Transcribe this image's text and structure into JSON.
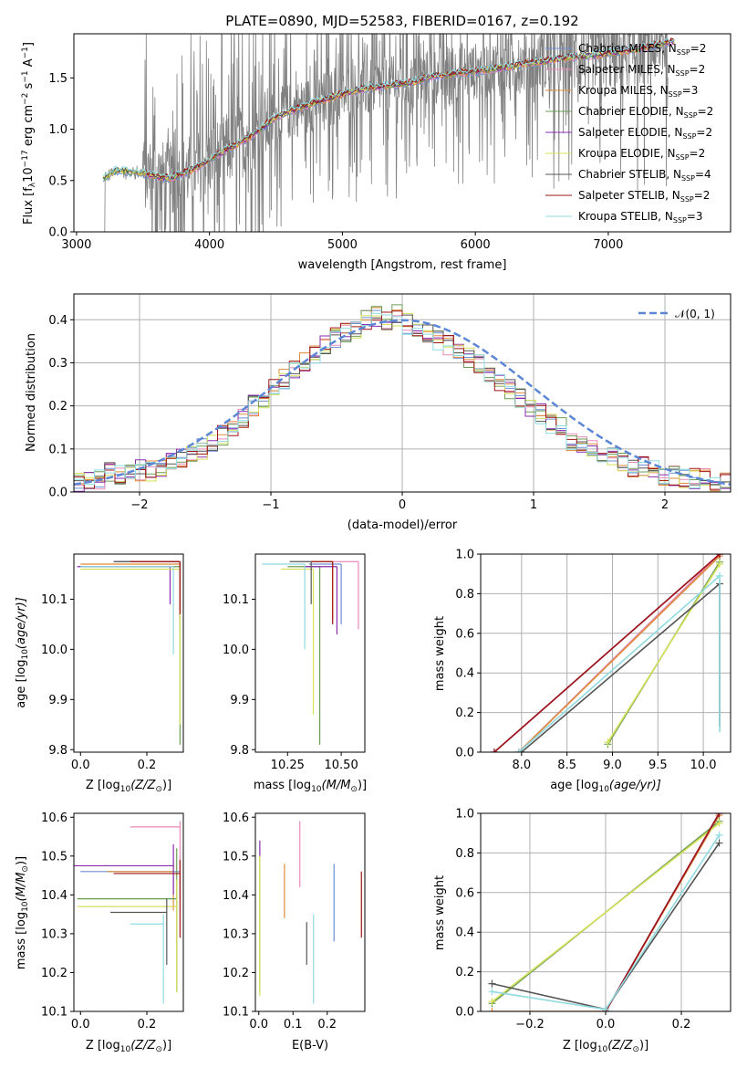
{
  "colors": {
    "Chabrier MILES": "#6f8fd6",
    "Salpeter MILES": "#e88ab8",
    "Kroupa MILES": "#e08b3a",
    "Chabrier ELODIE": "#6b9e55",
    "Salpeter ELODIE": "#8a2bb0",
    "Kroupa ELODIE": "#d6e05a",
    "Chabrier STELIB": "#555555",
    "Salpeter STELIB": "#a01515",
    "Kroupa STELIB": "#8fdbe0",
    "data": "#808080",
    "normal": "#5b87d6"
  },
  "legend_labels": {
    "Chabrier MILES": "Chabrier MILES, N",
    "Salpeter MILES": "Salpeter MILES, N",
    "Kroupa MILES": "Kroupa MILES, N",
    "Chabrier ELODIE": "Chabrier ELODIE, N",
    "Salpeter ELODIE": "Salpeter ELODIE, N",
    "Kroupa ELODIE": "Kroupa ELODIE, N",
    "Chabrier STELIB": "Chabrier STELIB, N",
    "Salpeter STELIB": "Salpeter STELIB, N",
    "Kroupa STELIB": "Kroupa STELIB, N"
  },
  "nssp_sub": "SSP",
  "nssp": {
    "Chabrier MILES": "=2",
    "Salpeter MILES": "=2",
    "Kroupa MILES": "=3",
    "Chabrier ELODIE": "=2",
    "Salpeter ELODIE": "=2",
    "Kroupa ELODIE": "=2",
    "Chabrier STELIB": "=4",
    "Salpeter STELIB": "=2",
    "Kroupa STELIB": "=3"
  },
  "chart_data": [
    {
      "id": "spectrum",
      "type": "line",
      "title": "PLATE=0890, MJD=52583, FIBERID=0167, z=0.192",
      "xlabel": "wavelength [Angstrom, rest frame]",
      "ylabel": "Flux [f",
      "ylabel_rest": "10",
      "ylabel_exp": "−17",
      "ylabel_end": " erg cm",
      "ylabel_exp2": "−2",
      "ylabel_end2": " s",
      "ylabel_exp3": "−1",
      "ylabel_end3": " A",
      "ylabel_exp4": "−1",
      "ylabel_close": "]",
      "xlim": [
        2980,
        7920
      ],
      "ylim": [
        0,
        1.93
      ],
      "xticks": [
        3000,
        4000,
        5000,
        6000,
        7000
      ],
      "yticks": [
        0.0,
        0.5,
        1.0,
        1.5
      ],
      "grid": false,
      "legend_position": "top-right",
      "continuum": {
        "x": [
          3200,
          3300,
          3500,
          3700,
          3900,
          4100,
          4300,
          4500,
          4700,
          4900,
          5100,
          5300,
          5500,
          5700,
          5900,
          6100,
          6300,
          6500,
          6700,
          6900,
          7100,
          7300,
          7450
        ],
        "y": [
          0.52,
          0.6,
          0.57,
          0.52,
          0.62,
          0.78,
          0.92,
          1.12,
          1.22,
          1.3,
          1.38,
          1.42,
          1.45,
          1.52,
          1.55,
          1.58,
          1.62,
          1.66,
          1.7,
          1.72,
          1.76,
          1.8,
          1.85
        ]
      }
    },
    {
      "id": "residuals",
      "type": "bar",
      "xlabel": "(data-model)/error",
      "ylabel": "Normed distribution",
      "xlim": [
        -2.5,
        2.5
      ],
      "ylim": [
        0,
        0.46
      ],
      "xticks": [
        -2,
        -1,
        0,
        1,
        2
      ],
      "yticks": [
        0.0,
        0.1,
        0.2,
        0.3,
        0.4
      ],
      "grid": true,
      "legend_entry": "𝒩(0, 1)",
      "legend_position": "top-right",
      "bin_width": 0.1,
      "bin_start": -2.5,
      "histogram_envelope": [
        0.02,
        0.025,
        0.03,
        0.045,
        0.04,
        0.045,
        0.05,
        0.05,
        0.06,
        0.07,
        0.08,
        0.09,
        0.1,
        0.11,
        0.13,
        0.15,
        0.17,
        0.2,
        0.22,
        0.24,
        0.26,
        0.28,
        0.3,
        0.32,
        0.34,
        0.36,
        0.37,
        0.38,
        0.4,
        0.41,
        0.4,
        0.41,
        0.39,
        0.38,
        0.37,
        0.35,
        0.34,
        0.33,
        0.31,
        0.3,
        0.28,
        0.26,
        0.24,
        0.22,
        0.2,
        0.18,
        0.16,
        0.15,
        0.12,
        0.11,
        0.1,
        0.09,
        0.08,
        0.07,
        0.06,
        0.06,
        0.05,
        0.04,
        0.04,
        0.035,
        0.03,
        0.03,
        0.025,
        0.02
      ]
    },
    {
      "id": "age-vs-Z",
      "type": "scatter",
      "xlabel": "Z [log",
      "xlabel_sub": "10",
      "xlabel_rest": "(Z/Z",
      "xlabel_sun": "⊙",
      "xlabel_end": ")]",
      "ylabel": "age  [log",
      "ylabel_sub": "10",
      "ylabel_rest": "(age/yr)]",
      "xlim": [
        -0.02,
        0.31
      ],
      "ylim": [
        9.795,
        10.19
      ],
      "xticks": [
        0.0,
        0.2
      ],
      "yticks": [
        9.8,
        9.9,
        10.0,
        10.1
      ],
      "points": [
        {
          "m": "Chabrier MILES",
          "x": 0.3,
          "y": 10.175,
          "xerr": 0.2,
          "ylo": 10.05
        },
        {
          "m": "Salpeter MILES",
          "x": 0.3,
          "y": 10.175,
          "xerr": 0.15,
          "ylo": 10.04
        },
        {
          "m": "Kroupa MILES",
          "x": 0.3,
          "y": 10.17,
          "xerr": 0.3,
          "ylo": 10.06
        },
        {
          "m": "Chabrier ELODIE",
          "x": 0.3,
          "y": 10.165,
          "xerr": 0.3,
          "ylo": 9.81
        },
        {
          "m": "Salpeter ELODIE",
          "x": 0.27,
          "y": 10.165,
          "xerr": 0.28,
          "ylo": 10.09
        },
        {
          "m": "Kroupa ELODIE",
          "x": 0.3,
          "y": 10.16,
          "xerr": 0.3,
          "ylo": 9.85
        },
        {
          "m": "Chabrier STELIB",
          "x": 0.3,
          "y": 10.175,
          "xerr": 0.2,
          "ylo": 10.08
        },
        {
          "m": "Salpeter STELIB",
          "x": 0.3,
          "y": 10.175,
          "xerr": 0.15,
          "ylo": 10.07
        },
        {
          "m": "Kroupa STELIB",
          "x": 0.28,
          "y": 10.165,
          "xerr": 0.28,
          "ylo": 9.99
        }
      ]
    },
    {
      "id": "age-vs-mass",
      "type": "scatter",
      "xlabel": "mass [log",
      "xlabel_sub": "10",
      "xlabel_rest": "(M/M",
      "xlabel_sun": "⊙",
      "xlabel_end": ")]",
      "xlim": [
        10.1,
        10.61
      ],
      "ylim": [
        9.795,
        10.19
      ],
      "xticks": [
        10.25,
        10.5
      ],
      "yticks": [
        9.8,
        9.9,
        10.0,
        10.1
      ],
      "points": [
        {
          "m": "Chabrier MILES",
          "x": 10.5,
          "y": 10.17,
          "xerr": 0.15,
          "ylo": 10.05
        },
        {
          "m": "Salpeter MILES",
          "x": 10.58,
          "y": 10.175,
          "xerr": 0.15,
          "ylo": 10.04
        },
        {
          "m": "Kroupa MILES",
          "x": 10.46,
          "y": 10.175,
          "xerr": 0.1,
          "ylo": 10.06
        },
        {
          "m": "Chabrier ELODIE",
          "x": 10.4,
          "y": 10.165,
          "xerr": 0.15,
          "ylo": 9.81
        },
        {
          "m": "Salpeter ELODIE",
          "x": 10.48,
          "y": 10.165,
          "xerr": 0.15,
          "ylo": 10.03
        },
        {
          "m": "Kroupa ELODIE",
          "x": 10.37,
          "y": 10.16,
          "xerr": 0.15,
          "ylo": 9.87
        },
        {
          "m": "Chabrier STELIB",
          "x": 10.36,
          "y": 10.175,
          "xerr": 0.1,
          "ylo": 10.09
        },
        {
          "m": "Salpeter STELIB",
          "x": 10.46,
          "y": 10.175,
          "xerr": 0.1,
          "ylo": 10.05
        },
        {
          "m": "Kroupa STELIB",
          "x": 10.33,
          "y": 10.17,
          "xerr": 0.2,
          "ylo": 10.0
        }
      ]
    },
    {
      "id": "mass-weight-vs-age",
      "type": "line",
      "xlabel": "age  [log",
      "xlabel_sub": "10",
      "xlabel_rest": "(age/yr)]",
      "ylabel": "mass weight",
      "xlim": [
        7.55,
        10.3
      ],
      "ylim": [
        0,
        1.0
      ],
      "xticks": [
        8.0,
        8.5,
        9.0,
        9.5,
        10.0
      ],
      "yticks": [
        0.0,
        0.2,
        0.4,
        0.6,
        0.8,
        1.0
      ],
      "grid": true,
      "series": [
        {
          "m": "Chabrier MILES",
          "x": [
            7.97,
            10.18
          ],
          "y": [
            0.0,
            1.0
          ]
        },
        {
          "m": "Salpeter MILES",
          "x": [
            7.97,
            10.18
          ],
          "y": [
            0.0,
            1.0
          ]
        },
        {
          "m": "Kroupa MILES",
          "x": [
            7.97,
            10.18
          ],
          "y": [
            0.0,
            0.99
          ]
        },
        {
          "m": "Chabrier ELODIE",
          "x": [
            8.95,
            10.18
          ],
          "y": [
            0.04,
            0.96
          ]
        },
        {
          "m": "Salpeter ELODIE",
          "x": [
            7.7,
            10.18
          ],
          "y": [
            0.0,
            1.0
          ]
        },
        {
          "m": "Kroupa ELODIE",
          "x": [
            8.95,
            10.18
          ],
          "y": [
            0.05,
            0.95
          ]
        },
        {
          "m": "Chabrier STELIB",
          "x": [
            8.0,
            10.18
          ],
          "y": [
            0.0,
            0.85
          ]
        },
        {
          "m": "Salpeter STELIB",
          "x": [
            7.7,
            10.18
          ],
          "y": [
            0.0,
            1.0
          ]
        },
        {
          "m": "Kroupa STELIB",
          "x": [
            7.97,
            10.18
          ],
          "y": [
            0.0,
            0.89
          ]
        }
      ]
    },
    {
      "id": "mass-vs-Z",
      "type": "scatter",
      "xlabel": "Z [log",
      "xlabel_sub": "10",
      "xlabel_rest": "(Z/Z",
      "xlabel_sun": "⊙",
      "xlabel_end": ")]",
      "ylabel": "mass [log",
      "ylabel_sub": "10",
      "ylabel_rest": "(M/M",
      "ylabel_sun": "⊙",
      "ylabel_end": ")]",
      "xlim": [
        -0.02,
        0.31
      ],
      "ylim": [
        10.1,
        10.61
      ],
      "xticks": [
        0.0,
        0.2
      ],
      "yticks": [
        10.1,
        10.2,
        10.3,
        10.4,
        10.5,
        10.6
      ],
      "points": [
        {
          "m": "Chabrier MILES",
          "x": 0.3,
          "y": 10.46,
          "xerr": 0.3,
          "ylo": 10.39,
          "yhi": 10.5
        },
        {
          "m": "Salpeter MILES",
          "x": 0.3,
          "y": 10.575,
          "xerr": 0.15,
          "ylo": 10.43,
          "yhi": 10.59
        },
        {
          "m": "Kroupa MILES",
          "x": 0.28,
          "y": 10.46,
          "xerr": 0.2,
          "ylo": 10.36,
          "yhi": 10.49
        },
        {
          "m": "Chabrier ELODIE",
          "x": 0.29,
          "y": 10.39,
          "xerr": 0.3,
          "ylo": 10.15,
          "yhi": 10.52
        },
        {
          "m": "Salpeter ELODIE",
          "x": 0.28,
          "y": 10.475,
          "xerr": 0.3,
          "ylo": 10.4,
          "yhi": 10.53
        },
        {
          "m": "Kroupa ELODIE",
          "x": 0.29,
          "y": 10.37,
          "xerr": 0.3,
          "ylo": 10.15,
          "yhi": 10.44
        },
        {
          "m": "Chabrier STELIB",
          "x": 0.26,
          "y": 10.355,
          "xerr": 0.17,
          "ylo": 10.22,
          "yhi": 10.39
        },
        {
          "m": "Salpeter STELIB",
          "x": 0.3,
          "y": 10.455,
          "xerr": 0.2,
          "ylo": 10.29,
          "yhi": 10.49
        },
        {
          "m": "Kroupa STELIB",
          "x": 0.25,
          "y": 10.325,
          "xerr": 0.1,
          "ylo": 10.12,
          "yhi": 10.35
        }
      ]
    },
    {
      "id": "mass-vs-EBV",
      "type": "scatter",
      "xlabel": "E(B-V)",
      "xlim": [
        -0.01,
        0.31
      ],
      "ylim": [
        10.1,
        10.61
      ],
      "xticks": [
        0.0,
        0.1,
        0.2
      ],
      "yticks": [
        10.1,
        10.2,
        10.3,
        10.4,
        10.5,
        10.6
      ],
      "points": [
        {
          "m": "Chabrier MILES",
          "x": 0.22,
          "ylo": 10.28,
          "yhi": 10.48
        },
        {
          "m": "Salpeter MILES",
          "x": 0.12,
          "ylo": 10.42,
          "yhi": 10.59
        },
        {
          "m": "Kroupa MILES",
          "x": 0.075,
          "ylo": 10.34,
          "yhi": 10.48
        },
        {
          "m": "Chabrier ELODIE",
          "x": 0.003,
          "ylo": 10.15,
          "yhi": 10.5
        },
        {
          "m": "Salpeter ELODIE",
          "x": 0.003,
          "ylo": 10.5,
          "yhi": 10.54
        },
        {
          "m": "Kroupa ELODIE",
          "x": 0.003,
          "ylo": 10.14,
          "yhi": 10.5
        },
        {
          "m": "Chabrier STELIB",
          "x": 0.14,
          "ylo": 10.22,
          "yhi": 10.33
        },
        {
          "m": "Salpeter STELIB",
          "x": 0.3,
          "ylo": 10.29,
          "yhi": 10.46
        },
        {
          "m": "Kroupa STELIB",
          "x": 0.16,
          "ylo": 10.12,
          "yhi": 10.35
        }
      ]
    },
    {
      "id": "mass-weight-vs-Z",
      "type": "line",
      "xlabel": "Z [log",
      "xlabel_sub": "10",
      "xlabel_rest": "(Z/Z",
      "xlabel_sun": "⊙",
      "xlabel_end": ")]",
      "ylabel": "mass weight",
      "xlim": [
        -0.33,
        0.33
      ],
      "ylim": [
        0,
        1.0
      ],
      "xticks": [
        -0.2,
        0.0,
        0.2
      ],
      "yticks": [
        0.0,
        0.2,
        0.4,
        0.6,
        0.8,
        1.0
      ],
      "grid": true,
      "series": [
        {
          "m": "Chabrier MILES",
          "x": [
            0.0,
            0.3
          ],
          "y": [
            0.0,
            1.0
          ]
        },
        {
          "m": "Salpeter MILES",
          "x": [
            0.0,
            0.3
          ],
          "y": [
            0.0,
            1.0
          ]
        },
        {
          "m": "Kroupa MILES",
          "x": [
            -0.3,
            0.0,
            0.3
          ],
          "y": [
            0.0,
            0.0,
            0.99
          ]
        },
        {
          "m": "Chabrier ELODIE",
          "x": [
            -0.3,
            0.3
          ],
          "y": [
            0.04,
            0.96
          ]
        },
        {
          "m": "Salpeter ELODIE",
          "x": [
            0.0,
            0.3
          ],
          "y": [
            0.0,
            1.0
          ]
        },
        {
          "m": "Kroupa ELODIE",
          "x": [
            -0.3,
            0.3
          ],
          "y": [
            0.05,
            0.95
          ]
        },
        {
          "m": "Chabrier STELIB",
          "x": [
            -0.3,
            0.0,
            0.3
          ],
          "y": [
            0.14,
            0.01,
            0.85
          ]
        },
        {
          "m": "Salpeter STELIB",
          "x": [
            0.0,
            0.3
          ],
          "y": [
            0.0,
            1.0
          ]
        },
        {
          "m": "Kroupa STELIB",
          "x": [
            -0.3,
            0.0,
            0.3
          ],
          "y": [
            0.1,
            0.01,
            0.89
          ]
        }
      ]
    }
  ]
}
